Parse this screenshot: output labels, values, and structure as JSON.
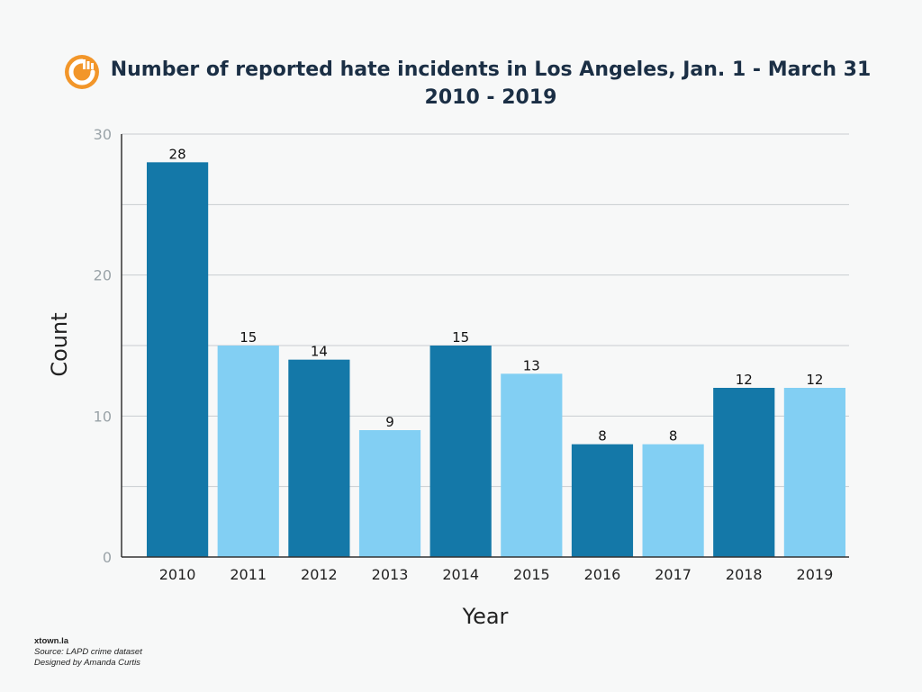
{
  "title_line1": "Number of reported hate incidents in Los Angeles,  Jan. 1 - March 31",
  "title_line2": "2010 - 2019",
  "logo_icon": "xtown-logo-icon",
  "footer": {
    "brand": "xtown.la",
    "source": "Source: LAPD crime dataset",
    "credit": "Designed by Amanda Curtis"
  },
  "colors": {
    "dark_bar": "#1478a8",
    "light_bar": "#82cff3",
    "logo": "#f2962a",
    "grid": "#c8cdd0",
    "axis": "#333333"
  },
  "chart_data": {
    "type": "bar",
    "categories": [
      "2010",
      "2011",
      "2012",
      "2013",
      "2014",
      "2015",
      "2016",
      "2017",
      "2018",
      "2019"
    ],
    "values": [
      28,
      15,
      14,
      9,
      15,
      13,
      8,
      8,
      12,
      12
    ],
    "data_labels": [
      "28",
      "15",
      "14",
      "9",
      "15",
      "13",
      "8",
      "8",
      "12",
      "12"
    ],
    "bar_colors": [
      "#1478a8",
      "#82cff3",
      "#1478a8",
      "#82cff3",
      "#1478a8",
      "#82cff3",
      "#1478a8",
      "#82cff3",
      "#1478a8",
      "#82cff3"
    ],
    "xlabel": "Year",
    "ylabel": "Count",
    "ylim": [
      0,
      30
    ],
    "yticks": [
      0,
      10,
      20,
      30
    ],
    "ytick_labels": [
      "0",
      "10",
      "20",
      "30"
    ],
    "grid": true,
    "legend": false
  }
}
